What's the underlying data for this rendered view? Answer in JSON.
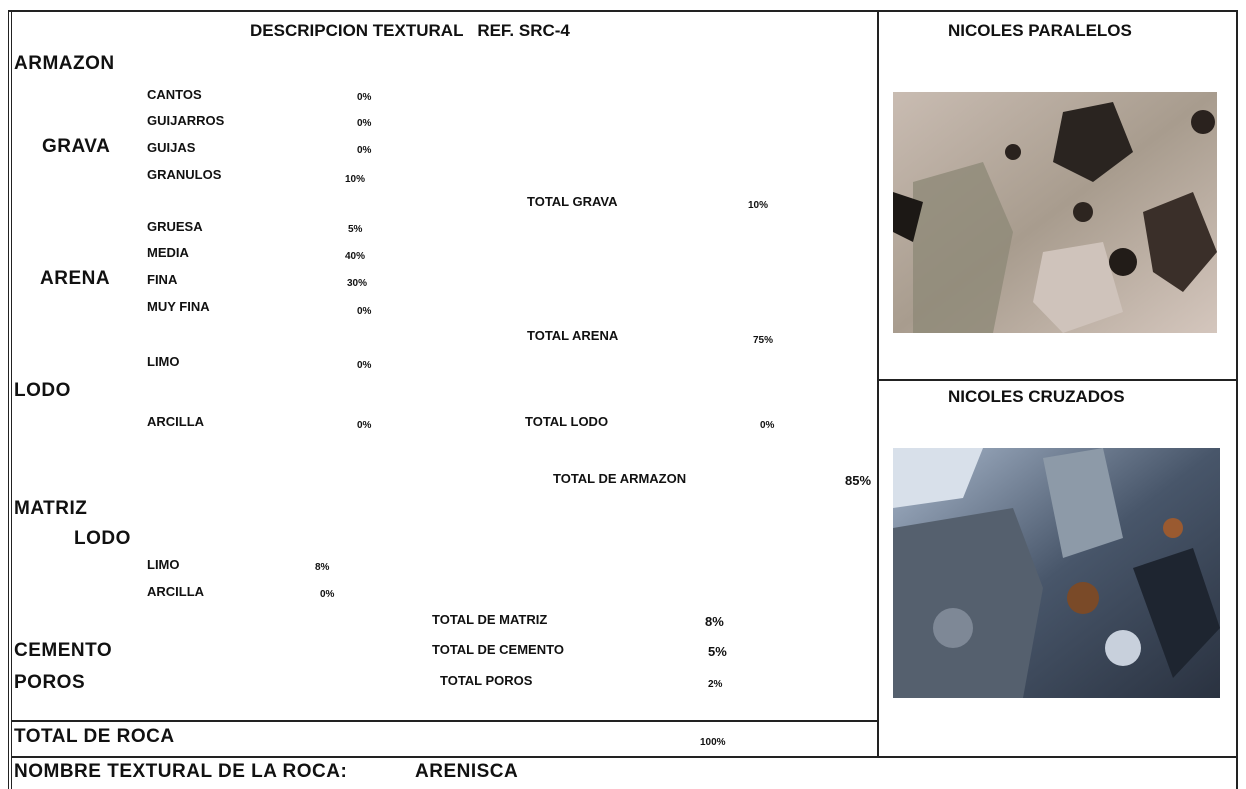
{
  "header": {
    "title": "DESCRIPCION TEXTURAL   REF. SRC-4"
  },
  "armazon": {
    "label": "ARMAZON",
    "grava": {
      "label": "GRAVA",
      "items": [
        {
          "name": "CANTOS",
          "value": "0%"
        },
        {
          "name": "GUIJARROS",
          "value": "0%"
        },
        {
          "name": "GUIJAS",
          "value": "0%"
        },
        {
          "name": "GRANULOS",
          "value": "10%"
        }
      ],
      "total_label": "TOTAL GRAVA",
      "total": "10%"
    },
    "arena": {
      "label": "ARENA",
      "items": [
        {
          "name": "GRUESA",
          "value": "5%"
        },
        {
          "name": "MEDIA",
          "value": "40%"
        },
        {
          "name": "FINA",
          "value": "30%"
        },
        {
          "name": "MUY FINA",
          "value": "0%"
        }
      ],
      "total_label": "TOTAL ARENA",
      "total": "75%"
    },
    "lodo": {
      "label": "LODO",
      "items": [
        {
          "name": "LIMO",
          "value": "0%"
        },
        {
          "name": "ARCILLA",
          "value": "0%"
        }
      ],
      "total_label": "TOTAL LODO",
      "total": "0%"
    },
    "total_label": "TOTAL DE ARMAZON",
    "total": "85%"
  },
  "matriz": {
    "label": "MATRIZ",
    "lodo_label": "LODO",
    "items": [
      {
        "name": "LIMO",
        "value": "8%"
      },
      {
        "name": "ARCILLA",
        "value": "0%"
      }
    ],
    "total_label": "TOTAL DE MATRIZ",
    "total": "8%"
  },
  "cemento": {
    "label": "CEMENTO",
    "total_label": "TOTAL DE CEMENTO",
    "total": "5%"
  },
  "poros": {
    "label": "POROS",
    "total_label": "TOTAL POROS",
    "total": "2%"
  },
  "total_roca": {
    "label": "TOTAL DE ROCA",
    "value": "100%"
  },
  "nombre": {
    "label": "NOMBRE TEXTURAL DE LA ROCA:",
    "value": "ARENISCA"
  },
  "images": {
    "paralelos": "NICOLES PARALELOS",
    "cruzados": "NICOLES CRUZADOS"
  }
}
